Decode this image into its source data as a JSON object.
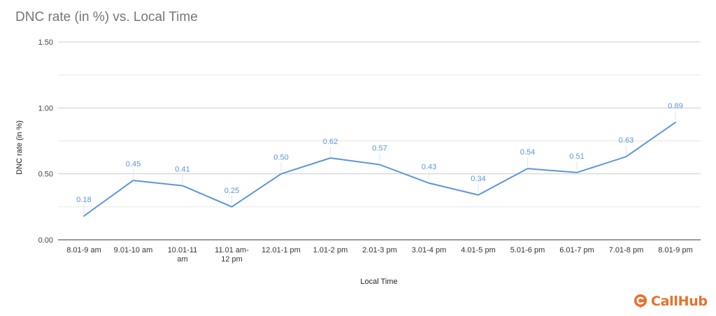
{
  "chart_data": {
    "type": "line",
    "title": "DNC rate (in %) vs. Local Time",
    "xlabel": "Local Time",
    "ylabel": "DNC rate (in %)",
    "ylim": [
      0,
      1.5
    ],
    "yticks": [
      "0.00",
      "0.50",
      "1.00",
      "1.50"
    ],
    "grid": true,
    "categories": [
      [
        "8.01-9 am"
      ],
      [
        "9.01-10 am"
      ],
      [
        "10.01-11",
        "am"
      ],
      [
        "11.01 am-",
        "12 pm"
      ],
      [
        "12.01-1 pm"
      ],
      [
        "1.01-2 pm"
      ],
      [
        "2.01-3 pm"
      ],
      [
        "3.01-4 pm"
      ],
      [
        "4.01-5 pm"
      ],
      [
        "5.01-6 pm"
      ],
      [
        "6.01-7 pm"
      ],
      [
        "7.01-8 pm"
      ],
      [
        "8.01-9 pm"
      ]
    ],
    "values": [
      0.18,
      0.45,
      0.41,
      0.25,
      0.5,
      0.62,
      0.57,
      0.43,
      0.34,
      0.54,
      0.51,
      0.63,
      0.89
    ],
    "labels": [
      "0.18",
      "0.45",
      "0.41",
      "0.25",
      "0.50",
      "0.62",
      "0.57",
      "0.43",
      "0.34",
      "0.54",
      "0.51",
      "0.63",
      "0.89"
    ],
    "line_color": "#5b95dd",
    "label_color": "#5b95dd"
  },
  "brand": {
    "name": "CallHub",
    "color": "#e8702a"
  }
}
